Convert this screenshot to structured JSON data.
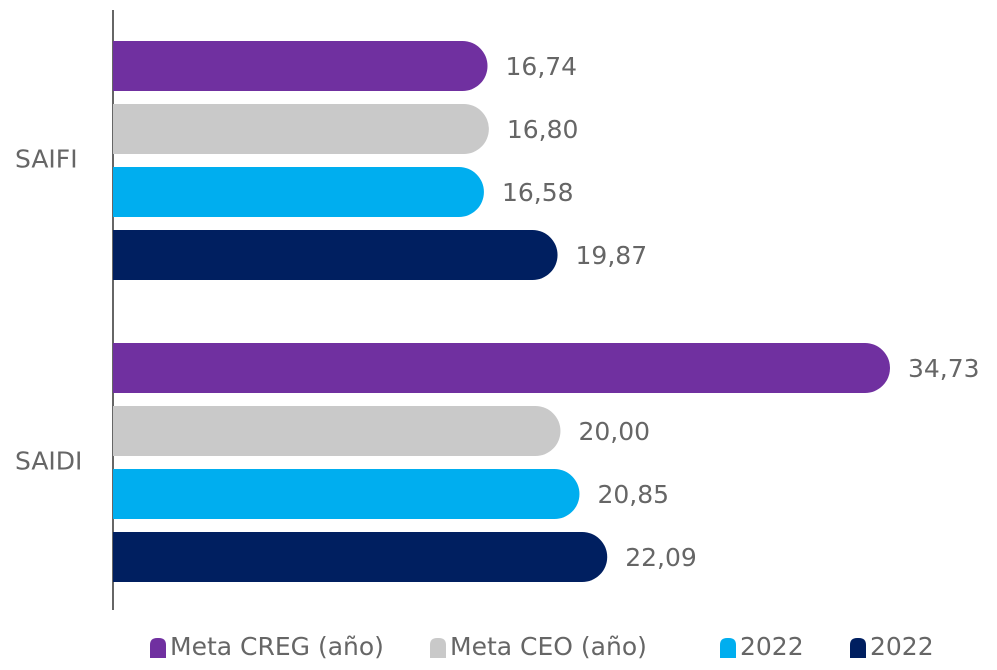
{
  "chart_data": {
    "type": "bar",
    "orientation": "horizontal",
    "categories": [
      "SAIFI",
      "SAIDI"
    ],
    "series": [
      {
        "name": "Meta CREG (año)",
        "color": "#7030a0",
        "values": [
          16.74,
          34.73
        ],
        "value_labels": [
          "16,74",
          "34,73"
        ]
      },
      {
        "name": "Meta CEO (año)",
        "color": "#c9c9c9",
        "values": [
          16.8,
          20.0
        ],
        "value_labels": [
          "16,80",
          "20,00"
        ]
      },
      {
        "name": "2022",
        "color": "#00aeef",
        "values": [
          16.58,
          20.85
        ],
        "value_labels": [
          "16,58",
          "20,85"
        ]
      },
      {
        "name": "2022",
        "color": "#001f60",
        "values": [
          19.87,
          22.09
        ],
        "value_labels": [
          "19,87",
          "22,09"
        ]
      }
    ],
    "legend": "bottom"
  }
}
